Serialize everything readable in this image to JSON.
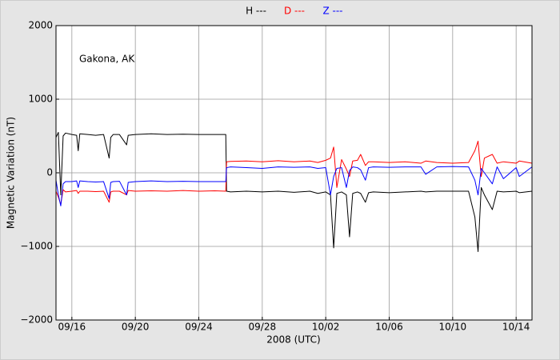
{
  "chart_data": {
    "type": "line",
    "annotation": "Gakona, AK",
    "x_label": "2008 (UTC)",
    "y_label": "Magnetic Variation (nT)",
    "legend": "top",
    "grid": true,
    "xlim": [
      0,
      30
    ],
    "xticks": [
      {
        "value": 1,
        "label": "09/16"
      },
      {
        "value": 5,
        "label": "09/20"
      },
      {
        "value": 9,
        "label": "09/24"
      },
      {
        "value": 13,
        "label": "09/28"
      },
      {
        "value": 17,
        "label": "10/02"
      },
      {
        "value": 21,
        "label": "10/06"
      },
      {
        "value": 25,
        "label": "10/10"
      },
      {
        "value": 29,
        "label": "10/14"
      }
    ],
    "ylim": [
      -2000,
      2000
    ],
    "yticks": [
      {
        "value": -2000,
        "label": "−2000"
      },
      {
        "value": -1000,
        "label": "−1000"
      },
      0,
      1000,
      2000
    ],
    "x": [
      0,
      0.15,
      0.3,
      0.45,
      0.6,
      1,
      1.3,
      1.4,
      1.5,
      2,
      2.5,
      3,
      3.35,
      3.45,
      3.6,
      4,
      4.45,
      4.55,
      5,
      6,
      7,
      8,
      9,
      10,
      10.7,
      10.75,
      11,
      12,
      13,
      14,
      15,
      16,
      16.5,
      17,
      17.3,
      17.5,
      17.7,
      18,
      18.3,
      18.5,
      18.7,
      19,
      19.2,
      19.5,
      19.7,
      20,
      21,
      22,
      23,
      23.3,
      24,
      25,
      26,
      26.4,
      26.6,
      26.8,
      27,
      27.5,
      27.8,
      28.2,
      29,
      29.2,
      30
    ],
    "series": [
      {
        "name": "H ---",
        "color": "#000000",
        "values": [
          480,
          550,
          -300,
          500,
          540,
          520,
          510,
          300,
          530,
          520,
          510,
          520,
          200,
          480,
          520,
          520,
          380,
          510,
          520,
          530,
          520,
          525,
          520,
          520,
          520,
          -250,
          -260,
          -250,
          -260,
          -250,
          -265,
          -250,
          -280,
          -260,
          -300,
          -1020,
          -280,
          -260,
          -300,
          -870,
          -280,
          -260,
          -280,
          -400,
          -270,
          -260,
          -270,
          -260,
          -250,
          -260,
          -250,
          -250,
          -250,
          -600,
          -1070,
          -200,
          -300,
          -500,
          -250,
          -260,
          -250,
          -270,
          -250
        ]
      },
      {
        "name": "D ---",
        "color": "#ff0000",
        "values": [
          -250,
          -330,
          -430,
          -230,
          -260,
          -250,
          -240,
          -280,
          -250,
          -250,
          -255,
          -250,
          -400,
          -260,
          -250,
          -250,
          -300,
          -240,
          -250,
          -245,
          -250,
          -240,
          -250,
          -245,
          -250,
          150,
          155,
          160,
          150,
          165,
          150,
          160,
          140,
          170,
          200,
          350,
          -200,
          180,
          50,
          -50,
          160,
          170,
          250,
          100,
          150,
          150,
          140,
          150,
          130,
          160,
          140,
          130,
          140,
          300,
          430,
          -50,
          200,
          250,
          130,
          150,
          130,
          160,
          130
        ]
      },
      {
        "name": "Z ---",
        "color": "#0000ff",
        "values": [
          -100,
          -300,
          -450,
          -150,
          -120,
          -120,
          -110,
          -200,
          -110,
          -120,
          -125,
          -120,
          -350,
          -130,
          -120,
          -115,
          -300,
          -130,
          -120,
          -110,
          -120,
          -115,
          -120,
          -120,
          -120,
          70,
          80,
          70,
          60,
          80,
          75,
          80,
          60,
          70,
          -300,
          -50,
          60,
          70,
          -200,
          30,
          80,
          70,
          40,
          -100,
          70,
          80,
          75,
          80,
          80,
          -20,
          80,
          85,
          80,
          -100,
          -300,
          60,
          0,
          -150,
          80,
          -80,
          70,
          -50,
          80
        ]
      }
    ]
  }
}
